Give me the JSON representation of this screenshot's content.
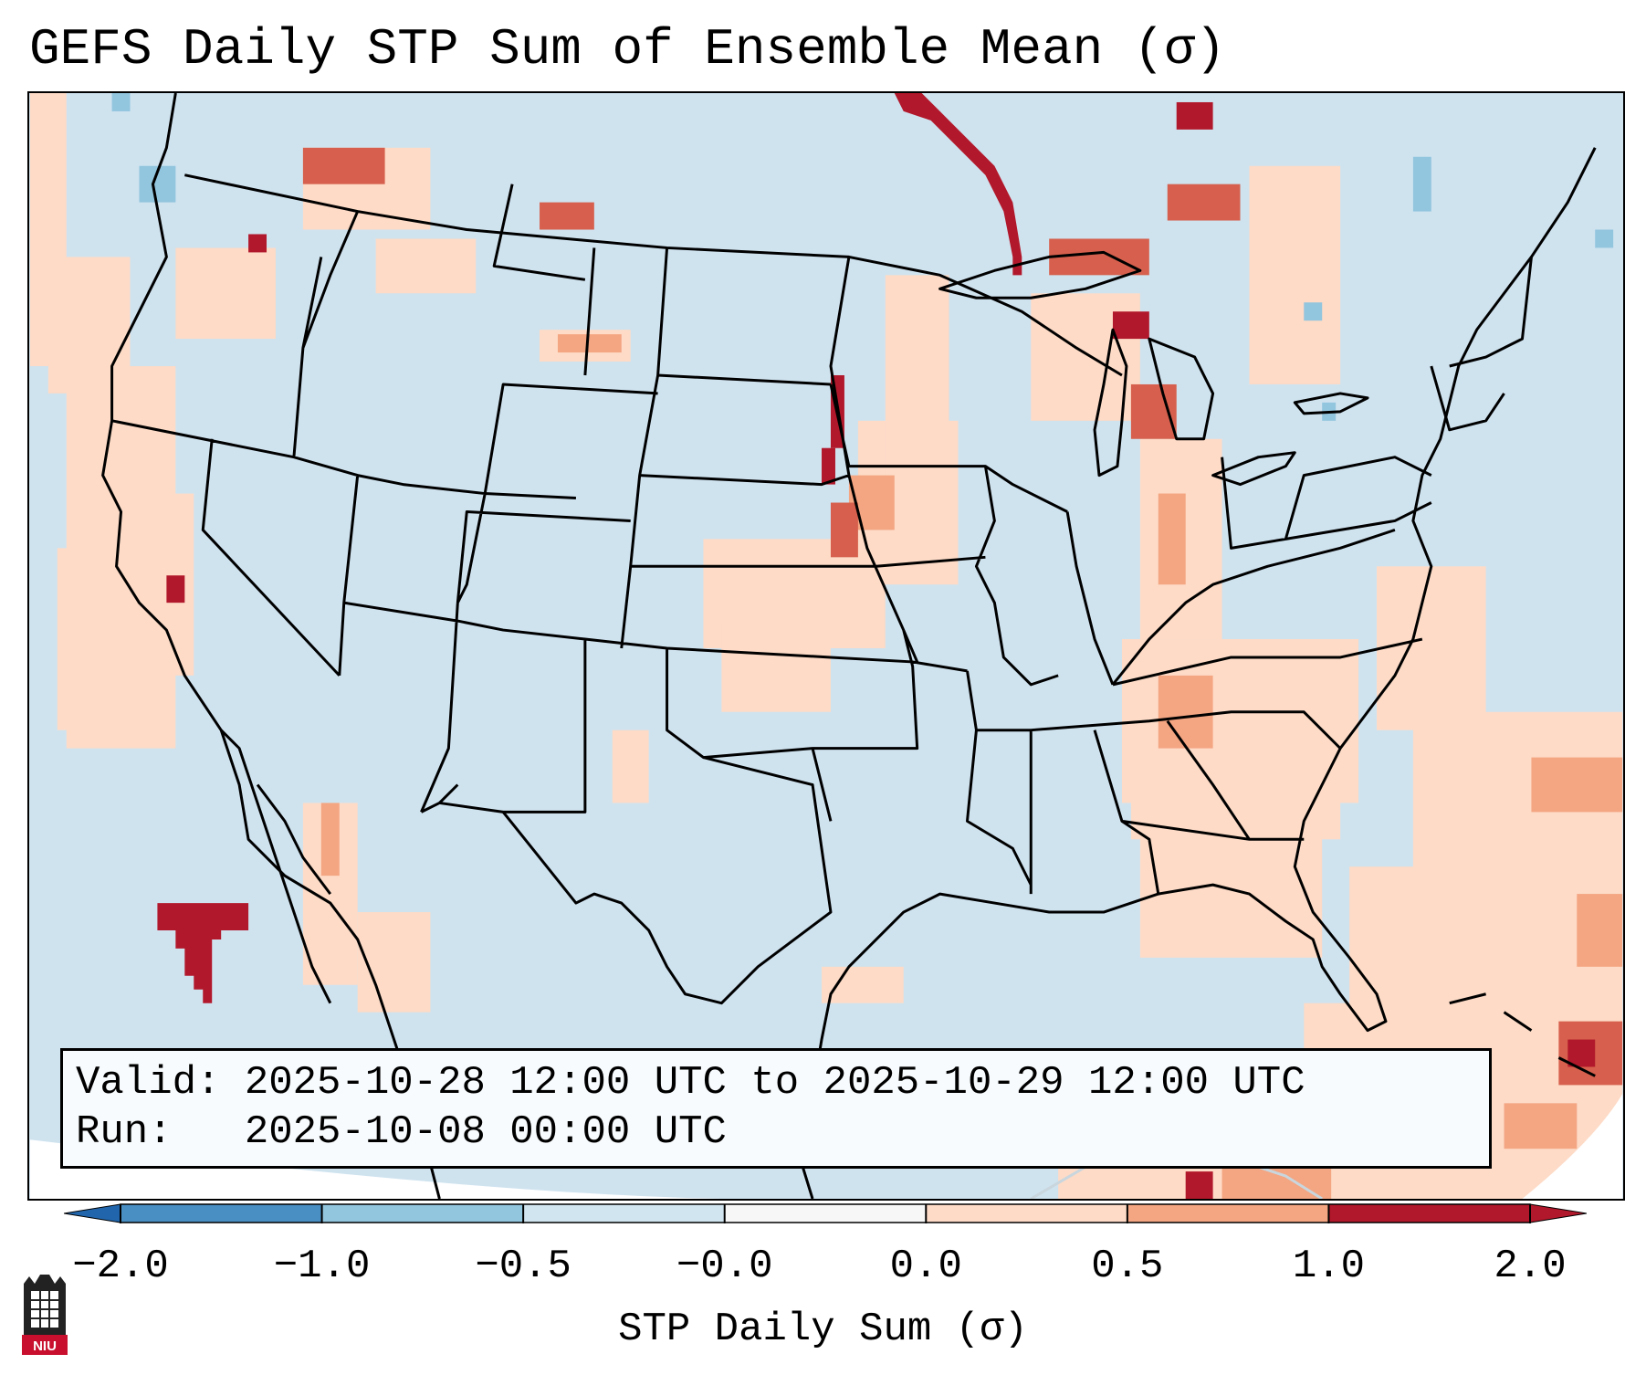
{
  "title": "GEFS Daily STP Sum of Ensemble Mean (σ)",
  "info": {
    "valid_line": "Valid: 2025-10-28 12:00 UTC to 2025-10-29 12:00 UTC",
    "run_line": "Run:   2025-10-08 00:00 UTC"
  },
  "colorbar": {
    "label": "STP Daily Sum (σ)",
    "ticks": [
      "−2.0",
      "−1.0",
      "−0.5",
      "−0.0",
      "0.0",
      "0.5",
      "1.0",
      "2.0"
    ],
    "colors": [
      "#4a8fc4",
      "#92c5de",
      "#d1e5f0",
      "#f7f7f7",
      "#fddbc7",
      "#f4a582",
      "#d6604d",
      "#b2182b"
    ],
    "extend_low_color": "#2166ac",
    "extend_high_color": "#b2182b"
  },
  "logo": {
    "text": "NIU",
    "color": "#c8102e"
  },
  "map": {
    "background_color": "#cfe3ef",
    "bins": [
      "0.0 to 0.5",
      "0.5 to 1.0",
      "1.0 to 2.0",
      ">2.0",
      "-1.0 to -0.5"
    ]
  }
}
